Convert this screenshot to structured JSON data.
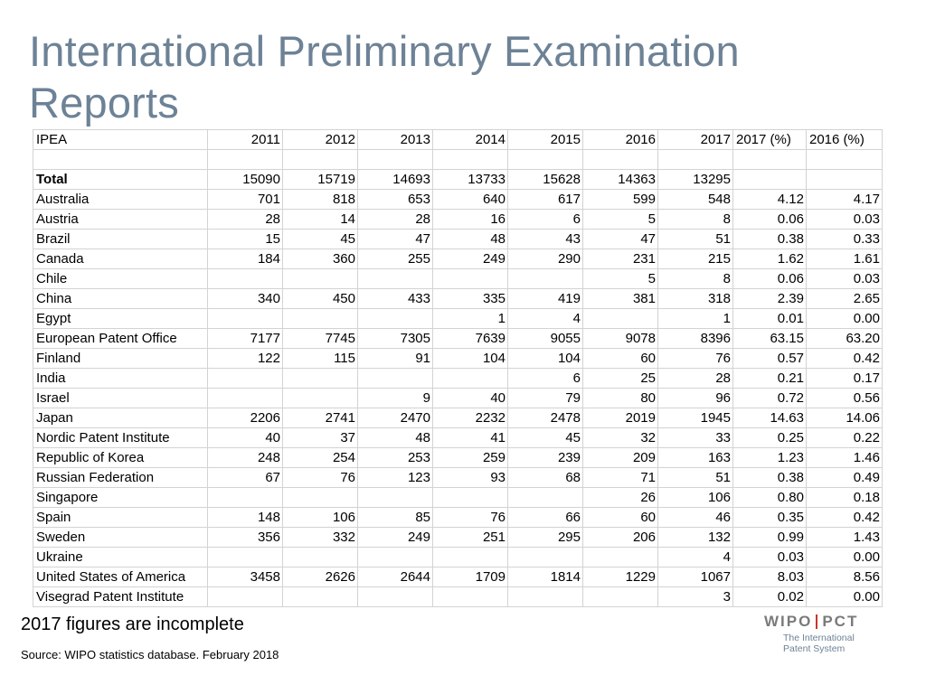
{
  "title": "International Preliminary Examination Reports",
  "table": {
    "header": [
      "IPEA",
      "2011",
      "2012",
      "2013",
      "2014",
      "2015",
      "2016",
      "2017",
      "2017 (%)",
      "2016 (%)"
    ],
    "rows": [
      [
        "",
        "",
        "",
        "",
        "",
        "",
        "",
        "",
        "",
        ""
      ],
      [
        "Total",
        "15090",
        "15719",
        "14693",
        "13733",
        "15628",
        "14363",
        "13295",
        "",
        ""
      ],
      [
        "Australia",
        "701",
        "818",
        "653",
        "640",
        "617",
        "599",
        "548",
        "4.12",
        "4.17"
      ],
      [
        "Austria",
        "28",
        "14",
        "28",
        "16",
        "6",
        "5",
        "8",
        "0.06",
        "0.03"
      ],
      [
        "Brazil",
        "15",
        "45",
        "47",
        "48",
        "43",
        "47",
        "51",
        "0.38",
        "0.33"
      ],
      [
        "Canada",
        "184",
        "360",
        "255",
        "249",
        "290",
        "231",
        "215",
        "1.62",
        "1.61"
      ],
      [
        "Chile",
        "",
        "",
        "",
        "",
        "",
        "5",
        "8",
        "0.06",
        "0.03"
      ],
      [
        "China",
        "340",
        "450",
        "433",
        "335",
        "419",
        "381",
        "318",
        "2.39",
        "2.65"
      ],
      [
        "Egypt",
        "",
        "",
        "",
        "1",
        "4",
        "",
        "1",
        "0.01",
        "0.00"
      ],
      [
        "European Patent Office",
        "7177",
        "7745",
        "7305",
        "7639",
        "9055",
        "9078",
        "8396",
        "63.15",
        "63.20"
      ],
      [
        "Finland",
        "122",
        "115",
        "91",
        "104",
        "104",
        "60",
        "76",
        "0.57",
        "0.42"
      ],
      [
        "India",
        "",
        "",
        "",
        "",
        "6",
        "25",
        "28",
        "0.21",
        "0.17"
      ],
      [
        "Israel",
        "",
        "",
        "9",
        "40",
        "79",
        "80",
        "96",
        "0.72",
        "0.56"
      ],
      [
        "Japan",
        "2206",
        "2741",
        "2470",
        "2232",
        "2478",
        "2019",
        "1945",
        "14.63",
        "14.06"
      ],
      [
        "Nordic Patent Institute",
        "40",
        "37",
        "48",
        "41",
        "45",
        "32",
        "33",
        "0.25",
        "0.22"
      ],
      [
        "Republic of Korea",
        "248",
        "254",
        "253",
        "259",
        "239",
        "209",
        "163",
        "1.23",
        "1.46"
      ],
      [
        "Russian Federation",
        "67",
        "76",
        "123",
        "93",
        "68",
        "71",
        "51",
        "0.38",
        "0.49"
      ],
      [
        "Singapore",
        "",
        "",
        "",
        "",
        "",
        "26",
        "106",
        "0.80",
        "0.18"
      ],
      [
        "Spain",
        "148",
        "106",
        "85",
        "76",
        "66",
        "60",
        "46",
        "0.35",
        "0.42"
      ],
      [
        "Sweden",
        "356",
        "332",
        "249",
        "251",
        "295",
        "206",
        "132",
        "0.99",
        "1.43"
      ],
      [
        "Ukraine",
        "",
        "",
        "",
        "",
        "",
        "",
        "4",
        "0.03",
        "0.00"
      ],
      [
        "United States of America",
        "3458",
        "2626",
        "2644",
        "1709",
        "1814",
        "1229",
        "1067",
        "8.03",
        "8.56"
      ],
      [
        "Visegrad Patent Institute",
        "",
        "",
        "",
        "",
        "",
        "",
        "3",
        "0.02",
        "0.00"
      ]
    ]
  },
  "footnote": "2017 figures are incomplete",
  "source": "Source: WIPO statistics database.  February 2018",
  "logo": {
    "left": "WIPO",
    "right": "PCT",
    "line1": "The International",
    "line2": "Patent System",
    "separator_color": "#c7362c"
  },
  "colors": {
    "title": "#6d8296",
    "grid": "#d3d3d3"
  }
}
